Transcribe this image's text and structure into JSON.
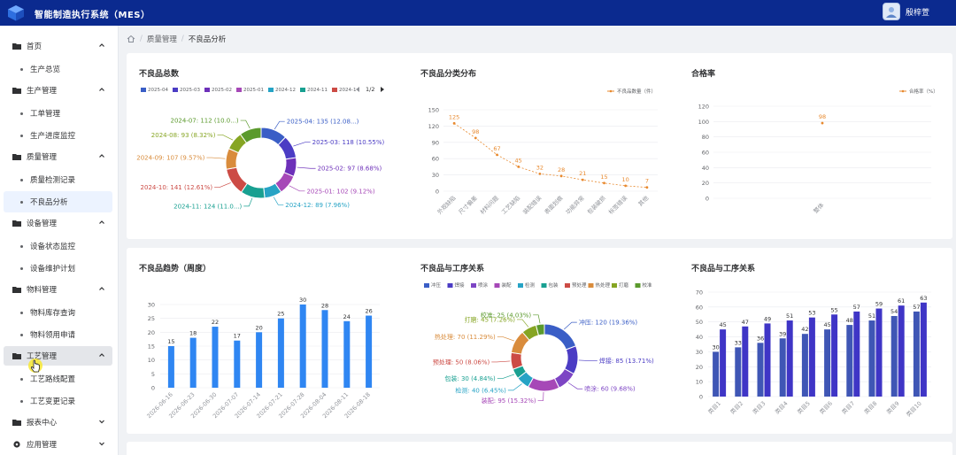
{
  "app": {
    "title": "智能制造执行系统（MES）",
    "username": "殷梓萱"
  },
  "breadcrumb": {
    "items": [
      "质量管理",
      "不良品分析"
    ]
  },
  "sidebar": {
    "groups": [
      {
        "label": "首页",
        "icon": "folder-icon",
        "expanded": true,
        "children": [
          "生产总览"
        ]
      },
      {
        "label": "生产管理",
        "icon": "folder-icon",
        "expanded": true,
        "children": [
          "工单管理",
          "生产进度监控"
        ]
      },
      {
        "label": "质量管理",
        "icon": "folder-icon",
        "expanded": true,
        "children": [
          "质量检测记录",
          "不良品分析"
        ]
      },
      {
        "label": "设备管理",
        "icon": "folder-icon",
        "expanded": true,
        "children": [
          "设备状态监控",
          "设备维护计划"
        ]
      },
      {
        "label": "物料管理",
        "icon": "folder-icon",
        "expanded": true,
        "children": [
          "物料库存查询",
          "物料领用申请"
        ]
      },
      {
        "label": "工艺管理",
        "icon": "folder-icon",
        "expanded": true,
        "children": [
          "工艺路线配置",
          "工艺变更记录"
        ]
      },
      {
        "label": "报表中心",
        "icon": "folder-icon",
        "expanded": false,
        "children": []
      },
      {
        "label": "应用管理",
        "icon": "app-icon",
        "expanded": false,
        "children": []
      }
    ],
    "active_item": "不良品分析",
    "hover_group": "工艺管理"
  },
  "cards": {
    "total": {
      "title": "不良品总数"
    },
    "category": {
      "title": "不良品分类分布"
    },
    "pass_rate": {
      "title": "合格率"
    },
    "trend": {
      "title": "不良品趋势（周度）"
    },
    "process_pie": {
      "title": "不良品与工序关系"
    },
    "process_bar": {
      "title": "不良品与工序关系"
    }
  },
  "chart_data": [
    {
      "id": "total",
      "type": "pie",
      "legend": {
        "items": [
          "2025-04",
          "2025-03",
          "2025-02",
          "2025-01",
          "2024-12",
          "2024-11",
          "2024-1"
        ],
        "page": "1/2",
        "placement": "top"
      },
      "labels": [
        "2025-04",
        "2025-03",
        "2025-02",
        "2025-01",
        "2024-12",
        "2024-11",
        "2024-10",
        "2024-09",
        "2024-08",
        "2024-07"
      ],
      "values": [
        135,
        118,
        97,
        102,
        89,
        124,
        141,
        107,
        93,
        112
      ],
      "percents": [
        "12.08...",
        "10.55%",
        "8.68%",
        "9.12%",
        "7.96%",
        "11.0...",
        "12.61%",
        "9.57%",
        "8.32%",
        "10.0..."
      ],
      "colors": [
        "#3a5ec6",
        "#4b3cc4",
        "#6d30b9",
        "#a648b7",
        "#26a3c5",
        "#18a091",
        "#cc4b45",
        "#d98c3c",
        "#86a523",
        "#5b9a2d"
      ]
    },
    {
      "id": "category",
      "type": "line",
      "series": [
        {
          "name": "不良品数量（件）",
          "values": [
            125,
            98,
            67,
            45,
            32,
            28,
            21,
            15,
            10,
            7
          ]
        }
      ],
      "categories": [
        "外观缺陷",
        "尺寸偏差",
        "材料问题",
        "工艺缺陷",
        "装配错误",
        "表面划痕",
        "功能异常",
        "包装破损",
        "标签错误",
        "其他"
      ],
      "ylim": [
        0,
        150
      ],
      "yticks": [
        0,
        30,
        60,
        90,
        120,
        150
      ],
      "color": "#e8892e",
      "legend_placement": "top-right"
    },
    {
      "id": "pass_rate",
      "type": "line",
      "series": [
        {
          "name": "合格率（%）",
          "values": [
            98
          ]
        }
      ],
      "categories": [
        "整体"
      ],
      "ylim": [
        0,
        120
      ],
      "yticks": [
        0,
        20,
        40,
        60,
        80,
        100,
        120
      ],
      "color": "#e8892e",
      "legend_placement": "top-right"
    },
    {
      "id": "trend",
      "type": "bar",
      "categories": [
        "2026-06-16",
        "2026-06-23",
        "2026-06-30",
        "2026-07-07",
        "2026-07-14",
        "2026-07-21",
        "2026-07-28",
        "2026-08-04",
        "2026-08-11",
        "2026-08-18"
      ],
      "values": [
        15,
        18,
        22,
        17,
        20,
        25,
        30,
        28,
        24,
        26
      ],
      "ylim": [
        0,
        30
      ],
      "yticks": [
        0,
        5,
        10,
        15,
        20,
        25,
        30
      ],
      "color": "#2f86f2"
    },
    {
      "id": "process_pie",
      "type": "pie",
      "legend": {
        "items": [
          "冲压",
          "焊接",
          "喷涂",
          "装配",
          "检测",
          "包装",
          "预处理",
          "热处理",
          "打磨",
          "校准"
        ],
        "placement": "top"
      },
      "labels": [
        "冲压",
        "焊接",
        "喷涂",
        "装配",
        "检测",
        "包装",
        "预处理",
        "热处理",
        "打磨",
        "校准"
      ],
      "values": [
        120,
        85,
        60,
        95,
        40,
        30,
        50,
        70,
        45,
        25
      ],
      "percents": [
        "19.36%",
        "13.71%",
        "9.68%",
        "15.32%",
        "6.45%",
        "4.84%",
        "8.06%",
        "11.29%",
        "7.26%",
        "4.03%"
      ],
      "colors": [
        "#3a5ec6",
        "#4b3cc4",
        "#7d45c4",
        "#a648b7",
        "#26a3c5",
        "#18a091",
        "#cc4b45",
        "#d98c3c",
        "#86a523",
        "#5b9a2d"
      ]
    },
    {
      "id": "process_bar",
      "type": "bar",
      "categories": [
        "类目1",
        "类目2",
        "类目3",
        "类目4",
        "类目5",
        "类目6",
        "类目7",
        "类目8",
        "类目9",
        "类目10"
      ],
      "series": [
        {
          "values": [
            30,
            33,
            36,
            39,
            42,
            45,
            48,
            51,
            54,
            57
          ],
          "color": "#3f56b5"
        },
        {
          "values": [
            45,
            47,
            49,
            51,
            53,
            55,
            57,
            59,
            61,
            63
          ],
          "color": "#3f35c6"
        }
      ],
      "ylim": [
        0,
        70
      ],
      "yticks": [
        0,
        10,
        20,
        30,
        40,
        50,
        60,
        70
      ]
    }
  ]
}
